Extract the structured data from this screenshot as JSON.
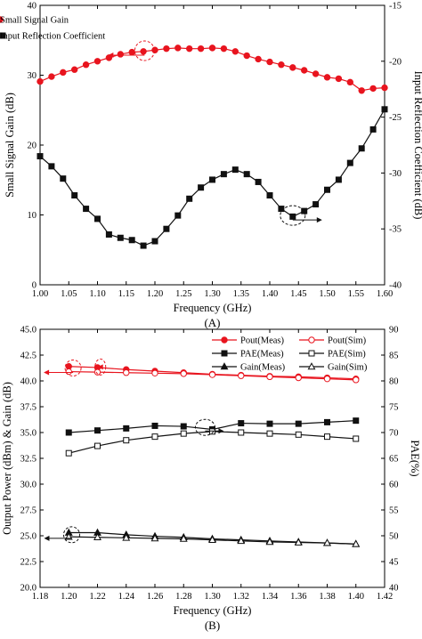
{
  "chart_data": [
    {
      "type": "line",
      "caption": "(A)",
      "xlabel": "Frequency (GHz)",
      "ylabel": "Small Signal Gain (dB)",
      "y2label": "Input Reflection Coefficient (dB)",
      "xlim": [
        1.0,
        1.6
      ],
      "ylim": [
        0,
        40
      ],
      "y2lim": [
        -40,
        -15
      ],
      "xticks": [
        "1.00",
        "1.05",
        "1.10",
        "1.15",
        "1.20",
        "1.25",
        "1.30",
        "1.35",
        "1.40",
        "1.45",
        "1.50",
        "1.55",
        "1.60"
      ],
      "yticks": [
        "0",
        "10",
        "20",
        "30",
        "40"
      ],
      "y2ticks": [
        "-40",
        "-35",
        "-30",
        "-25",
        "-20",
        "-15"
      ],
      "legend_position": "top-right",
      "series": [
        {
          "name": "Small Signal Gain",
          "axis": "left",
          "color": "#e8141e",
          "marker": "filled-circle",
          "x": [
            1.0,
            1.02,
            1.04,
            1.06,
            1.08,
            1.1,
            1.12,
            1.14,
            1.16,
            1.18,
            1.2,
            1.22,
            1.24,
            1.26,
            1.28,
            1.3,
            1.32,
            1.34,
            1.36,
            1.38,
            1.4,
            1.42,
            1.44,
            1.46,
            1.48,
            1.5,
            1.52,
            1.54,
            1.56,
            1.58,
            1.6
          ],
          "values": [
            29.1,
            29.8,
            30.4,
            30.8,
            31.5,
            32.0,
            32.5,
            33.0,
            33.3,
            33.4,
            33.6,
            33.8,
            33.9,
            33.8,
            33.8,
            33.9,
            33.8,
            33.4,
            32.8,
            32.3,
            31.9,
            31.5,
            31.1,
            30.7,
            30.2,
            29.7,
            29.5,
            29.0,
            27.8,
            28.1,
            28.2
          ]
        },
        {
          "name": "Input Reflection Coefficient",
          "axis": "right",
          "color": "#111111",
          "marker": "filled-square",
          "x": [
            1.0,
            1.02,
            1.04,
            1.06,
            1.08,
            1.1,
            1.12,
            1.14,
            1.16,
            1.18,
            1.2,
            1.22,
            1.24,
            1.26,
            1.28,
            1.3,
            1.32,
            1.34,
            1.36,
            1.38,
            1.4,
            1.42,
            1.44,
            1.46,
            1.48,
            1.5,
            1.52,
            1.54,
            1.56,
            1.58,
            1.6
          ],
          "values": [
            -28.5,
            -29.4,
            -30.5,
            -32.0,
            -33.2,
            -34.1,
            -35.5,
            -35.8,
            -36.0,
            -36.5,
            -36.1,
            -35.0,
            -33.8,
            -32.3,
            -31.3,
            -30.6,
            -30.1,
            -29.7,
            -30.1,
            -30.8,
            -32.0,
            -33.2,
            -33.9,
            -33.4,
            -32.8,
            -31.5,
            -30.6,
            -29.1,
            -27.8,
            -26.1,
            -24.3
          ]
        }
      ]
    },
    {
      "type": "line",
      "caption": "(B)",
      "xlabel": "Frequency (GHz)",
      "ylabel": "Output Power (dBm) & Gain (dB)",
      "y2label": "PAE(%)",
      "xlim": [
        1.18,
        1.42
      ],
      "ylim": [
        20.0,
        45.0
      ],
      "y2lim": [
        40,
        90
      ],
      "xticks": [
        "1.18",
        "1.20",
        "1.22",
        "1.24",
        "1.26",
        "1.28",
        "1.30",
        "1.32",
        "1.34",
        "1.36",
        "1.38",
        "1.40",
        "1.42"
      ],
      "yticks": [
        "20.0",
        "22.5",
        "25.0",
        "27.5",
        "30.0",
        "32.5",
        "35.0",
        "37.5",
        "40.0",
        "42.5",
        "45.0"
      ],
      "y2ticks": [
        "40",
        "45",
        "50",
        "55",
        "60",
        "65",
        "70",
        "75",
        "80",
        "85",
        "90"
      ],
      "legend_position": "top-right",
      "x": [
        1.2,
        1.22,
        1.24,
        1.26,
        1.28,
        1.3,
        1.32,
        1.34,
        1.36,
        1.38,
        1.4
      ],
      "series": [
        {
          "name": "Pout(Meas)",
          "axis": "left",
          "color": "#e8141e",
          "marker": "filled-circle",
          "values": [
            41.4,
            41.3,
            41.1,
            40.95,
            40.8,
            40.65,
            40.55,
            40.45,
            40.4,
            40.3,
            40.2
          ]
        },
        {
          "name": "Pout(Sim)",
          "axis": "left",
          "color": "#e8141e",
          "marker": "open-circle",
          "values": [
            40.9,
            40.85,
            40.8,
            40.75,
            40.7,
            40.6,
            40.5,
            40.4,
            40.3,
            40.2,
            40.1
          ]
        },
        {
          "name": "PAE(Meas)",
          "axis": "right",
          "color": "#111111",
          "marker": "filled-square",
          "values": [
            70.0,
            70.4,
            70.8,
            71.3,
            71.2,
            70.6,
            71.8,
            71.7,
            71.7,
            72.0,
            72.3
          ]
        },
        {
          "name": "PAE(Sim)",
          "axis": "right",
          "color": "#111111",
          "marker": "open-square",
          "values": [
            66.0,
            67.4,
            68.5,
            69.2,
            69.8,
            70.2,
            70.0,
            69.8,
            69.6,
            69.2,
            68.8
          ]
        },
        {
          "name": "Gain(Meas)",
          "axis": "left",
          "color": "#111111",
          "marker": "filled-triangle",
          "values": [
            25.3,
            25.3,
            25.1,
            24.95,
            24.85,
            24.7,
            24.6,
            24.5,
            24.4,
            24.3,
            24.2
          ]
        },
        {
          "name": "Gain(Sim)",
          "axis": "left",
          "color": "#111111",
          "marker": "open-triangle",
          "values": [
            24.9,
            24.85,
            24.8,
            24.75,
            24.7,
            24.6,
            24.5,
            24.4,
            24.35,
            24.3,
            24.2
          ]
        }
      ]
    }
  ]
}
